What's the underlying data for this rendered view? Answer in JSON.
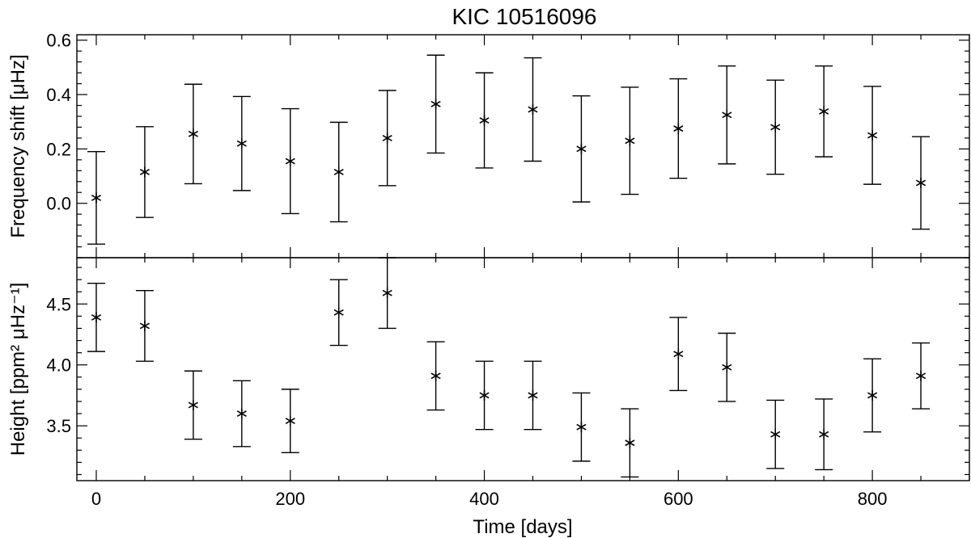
{
  "title": "KIC 10516096",
  "chart_data": [
    {
      "type": "scatter",
      "panel": "top",
      "title": "KIC 10516096",
      "xlabel": "",
      "ylabel": "Frequency shift [μHz]",
      "xlim": [
        -20,
        900
      ],
      "ylim": [
        -0.2,
        0.62
      ],
      "yticks": [
        0.0,
        0.2,
        0.4,
        0.6
      ],
      "ytick_labels": [
        "0.0",
        "0.2",
        "0.4",
        "0.6"
      ],
      "series": [
        {
          "x": [
            0,
            50,
            100,
            150,
            200,
            250,
            300,
            350,
            400,
            450,
            500,
            550,
            600,
            650,
            700,
            750,
            800,
            850
          ],
          "y": [
            0.02,
            0.115,
            0.255,
            0.22,
            0.155,
            0.115,
            0.24,
            0.365,
            0.305,
            0.345,
            0.2,
            0.23,
            0.275,
            0.325,
            0.28,
            0.338,
            0.25,
            0.075
          ],
          "yerr": [
            0.17,
            0.167,
            0.183,
            0.173,
            0.193,
            0.183,
            0.175,
            0.18,
            0.175,
            0.19,
            0.195,
            0.197,
            0.183,
            0.18,
            0.173,
            0.167,
            0.18,
            0.17
          ]
        }
      ]
    },
    {
      "type": "scatter",
      "panel": "bottom",
      "xlabel": "Time [days]",
      "ylabel": "Height [ppm² μHz⁻¹]",
      "xlim": [
        -20,
        900
      ],
      "ylim": [
        3.05,
        4.88
      ],
      "xticks": [
        0,
        200,
        400,
        600,
        800
      ],
      "xtick_labels": [
        "0",
        "200",
        "400",
        "600",
        "800"
      ],
      "yticks": [
        3.5,
        4.0,
        4.5
      ],
      "ytick_labels": [
        "3.5",
        "4.0",
        "4.5"
      ],
      "series": [
        {
          "x": [
            0,
            50,
            100,
            150,
            200,
            250,
            300,
            350,
            400,
            450,
            500,
            550,
            600,
            650,
            700,
            750,
            800,
            850
          ],
          "y": [
            4.39,
            4.32,
            3.67,
            3.6,
            3.54,
            4.43,
            4.59,
            3.91,
            3.75,
            3.75,
            3.49,
            3.36,
            4.09,
            3.98,
            3.43,
            3.43,
            3.75,
            3.91
          ],
          "yerr": [
            0.28,
            0.29,
            0.28,
            0.27,
            0.26,
            0.27,
            0.29,
            0.28,
            0.28,
            0.28,
            0.28,
            0.28,
            0.3,
            0.28,
            0.28,
            0.29,
            0.3,
            0.27
          ]
        }
      ]
    }
  ]
}
